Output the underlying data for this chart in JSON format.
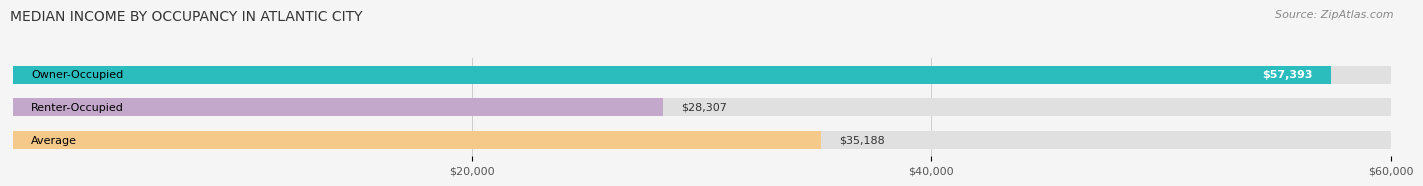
{
  "title": "MEDIAN INCOME BY OCCUPANCY IN ATLANTIC CITY",
  "source": "Source: ZipAtlas.com",
  "categories": [
    "Owner-Occupied",
    "Renter-Occupied",
    "Average"
  ],
  "values": [
    57393,
    28307,
    35188
  ],
  "bar_colors": [
    "#2bbcbe",
    "#c4a8cc",
    "#f5c98a"
  ],
  "value_labels": [
    "$57,393",
    "$28,307",
    "$35,188"
  ],
  "xlim": [
    0,
    60000
  ],
  "xticks": [
    20000,
    40000,
    60000
  ],
  "xticklabels": [
    "$20,000",
    "$40,000",
    "$60,000"
  ],
  "background_color": "#f5f5f5",
  "bar_background_color": "#e0e0e0",
  "title_fontsize": 10,
  "source_fontsize": 8,
  "label_fontsize": 8,
  "value_fontsize": 8,
  "bar_height": 0.55
}
